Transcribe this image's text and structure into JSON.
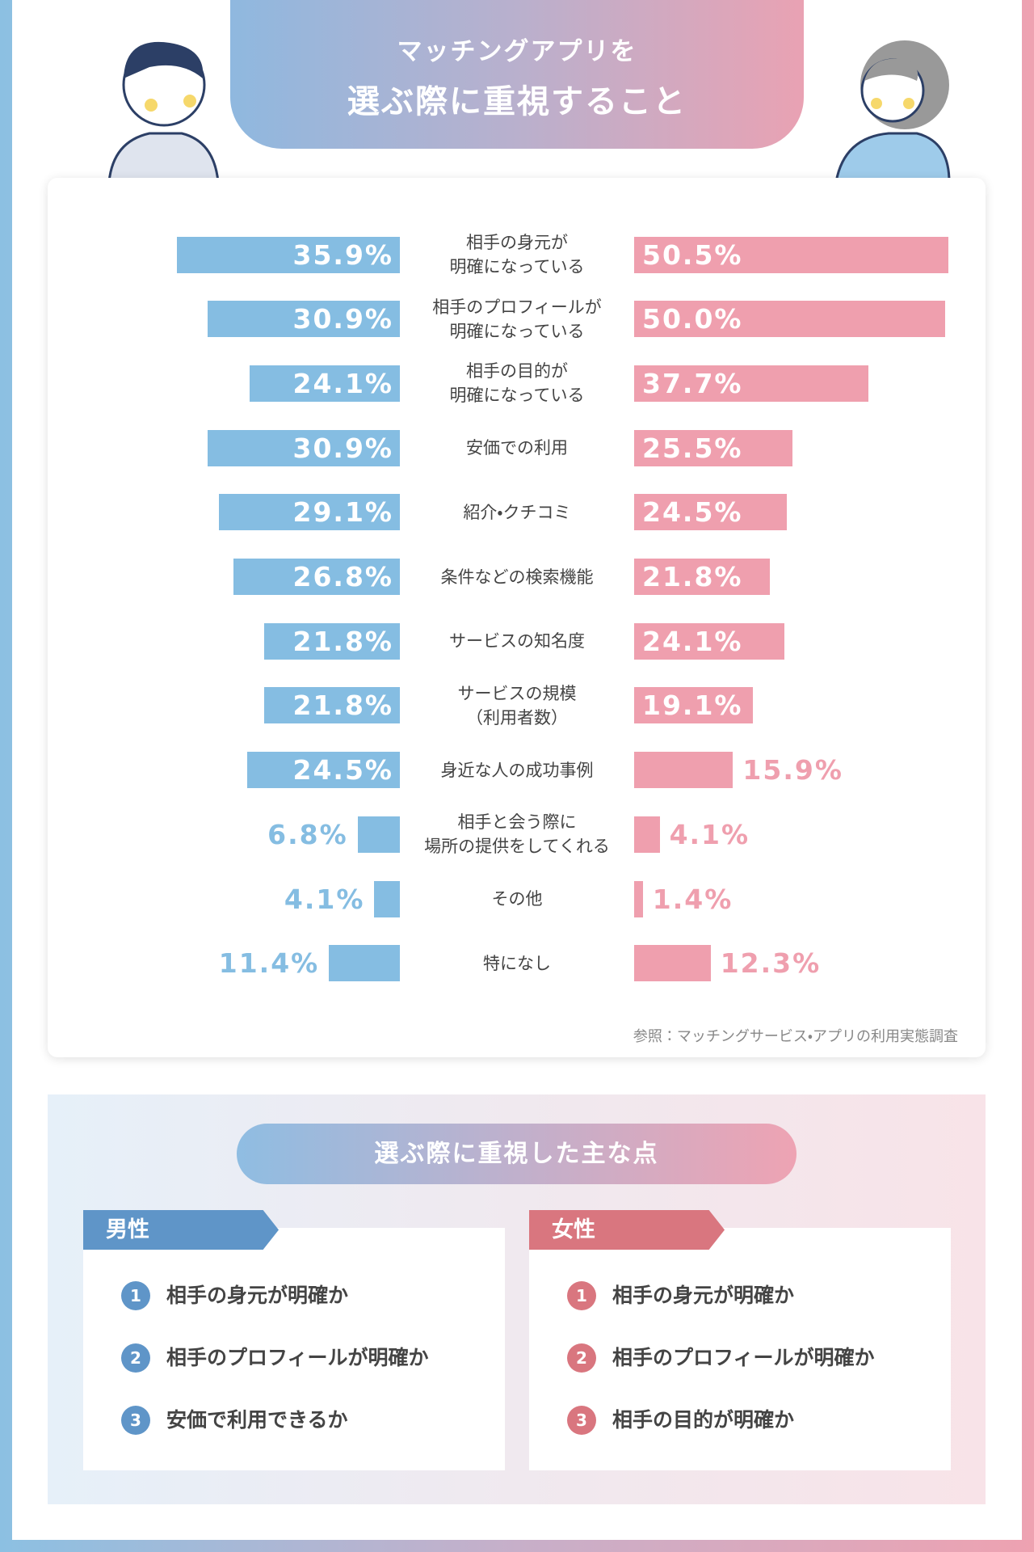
{
  "chart_data": {
    "type": "butterfly",
    "title": [
      "マッチングアプリを",
      "選ぶ際に重視すること"
    ],
    "categories": [
      "相手の身元が\n明確になっている",
      "相手のプロフィールが\n明確になっている",
      "相手の目的が\n明確になっている",
      "安価での利用",
      "紹介・クチコミ",
      "条件などの検索機能",
      "サービスの知名度",
      "サービスの規模\n（利用者数）",
      "身近な人の成功事例",
      "相手と会う際に\n場所の提供をしてくれる",
      "その他",
      "特になし"
    ],
    "series": [
      {
        "color": "#85bde2",
        "values": [
          35.9,
          30.9,
          24.1,
          30.9,
          29.1,
          26.8,
          21.8,
          21.8,
          24.5,
          6.8,
          4.1,
          11.4
        ],
        "value_labels": [
          "35.9%",
          "30.9%",
          "24.1%",
          "30.9%",
          "29.1%",
          "26.8%",
          "21.8%",
          "21.8%",
          "24.5%",
          "6.8%",
          "4.1%",
          "11.4%"
        ]
      },
      {
        "color": "#ef9fae",
        "values": [
          50.5,
          50.0,
          37.7,
          25.5,
          24.5,
          21.8,
          24.1,
          19.1,
          15.9,
          4.1,
          1.4,
          12.3
        ],
        "value_labels": [
          "50.5%",
          "50.0%",
          "37.7%",
          "25.5%",
          "24.5%",
          "21.8%",
          "24.1%",
          "19.1%",
          "15.9%",
          "4.1%",
          "1.4%",
          "12.3%"
        ]
      }
    ],
    "source": "参照：マッチングサービス・アプリの利用実態調査"
  },
  "summary": {
    "title": "選ぶ際に重視した主な点",
    "groups": [
      {
        "label": "男性",
        "color": "#5f95c8",
        "items": [
          {
            "rank": 1,
            "text": "相手の身元が明確か"
          },
          {
            "rank": 2,
            "text": "相手のプロフィールが明確か"
          },
          {
            "rank": 3,
            "text": "安価で利用できるか"
          }
        ]
      },
      {
        "label": "女性",
        "color": "#d9767f",
        "items": [
          {
            "rank": 1,
            "text": "相手の身元が明確か"
          },
          {
            "rank": 2,
            "text": "相手のプロフィールが明確か"
          },
          {
            "rank": 3,
            "text": "相手の目的が明確か"
          }
        ]
      }
    ]
  }
}
